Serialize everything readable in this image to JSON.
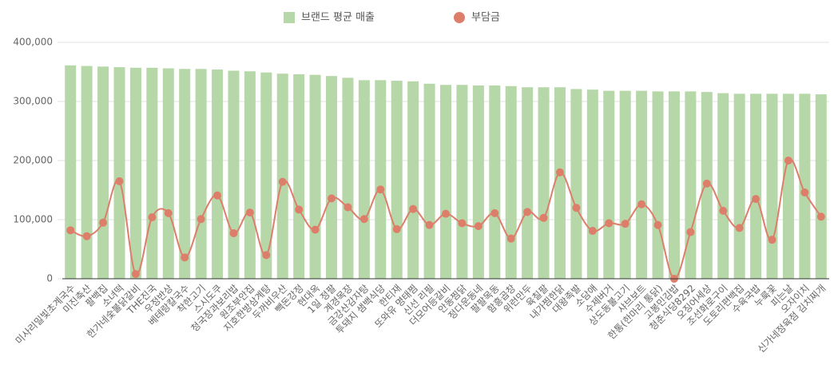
{
  "chart_data": {
    "type": "bar",
    "categories": [
      "미사리밀빛초계국수",
      "미진축산",
      "팔백집",
      "소녀떡",
      "한가네숯불닭갈비",
      "THE진국",
      "우정반상",
      "베테랑칼국수",
      "착한고기",
      "스시도쿠",
      "청국장과보리밥",
      "원조부안집",
      "지호한방삼계탕",
      "두꺼비우산",
      "빽돈강정",
      "현대옥",
      "1일 정팔",
      "계경목장",
      "금강산감자탕",
      "투돼지 샘백식당",
      "한티재",
      "또와유 명태찜",
      "신선 리필",
      "더모어등갈비",
      "안동찜닭",
      "정다운동네",
      "팔팔목동",
      "함흥곱창",
      "위런만두",
      "육칠팔",
      "내가찜한닭",
      "대왕족발",
      "소담애",
      "수제버거",
      "상도동불고기",
      "샤브보트",
      "한통(한마리 통닭)",
      "고봉민김밥",
      "청춘식당8292",
      "오징어세상",
      "조선화로구이",
      "도토리편백집",
      "수육국밥",
      "누룩꽃",
      "피는날",
      "오자이치",
      "신가네정육점 김치찌개"
    ],
    "series": [
      {
        "name": "브랜드 평균 매출",
        "type": "bar",
        "color": "#b6d7a8",
        "values": [
          361000,
          360000,
          359000,
          358000,
          357000,
          357000,
          356000,
          355000,
          355000,
          354000,
          352000,
          351000,
          349000,
          347000,
          346000,
          345000,
          343000,
          340000,
          336000,
          336000,
          335000,
          334000,
          330000,
          328000,
          328000,
          327000,
          327000,
          326000,
          324000,
          324000,
          324000,
          321000,
          320000,
          318000,
          318000,
          318000,
          317000,
          317000,
          317000,
          316000,
          314000,
          313000,
          313000,
          313000,
          313000,
          313000,
          312000
        ]
      },
      {
        "name": "부담금",
        "type": "line",
        "color": "#dd7e6b",
        "values": [
          82000,
          72000,
          95000,
          165000,
          8000,
          104000,
          111000,
          36000,
          101000,
          141000,
          77000,
          112000,
          40000,
          164000,
          117000,
          83000,
          136000,
          121000,
          101000,
          151000,
          84000,
          118000,
          91000,
          110000,
          94000,
          89000,
          111000,
          68000,
          113000,
          103000,
          180000,
          120000,
          81000,
          94000,
          93000,
          126000,
          91000,
          0,
          79000,
          161000,
          115000,
          86000,
          135000,
          66000,
          200000,
          146000,
          105000
        ]
      }
    ],
    "ylim": [
      0,
      400000
    ],
    "yticks": [
      0,
      {
        "value": 100000,
        "label": "100,000"
      },
      {
        "value": 200000,
        "label": "200,000"
      },
      {
        "value": 300000,
        "label": "300,000"
      },
      {
        "value": 400000,
        "label": "400,000"
      }
    ],
    "grid": true,
    "legend": "top"
  }
}
